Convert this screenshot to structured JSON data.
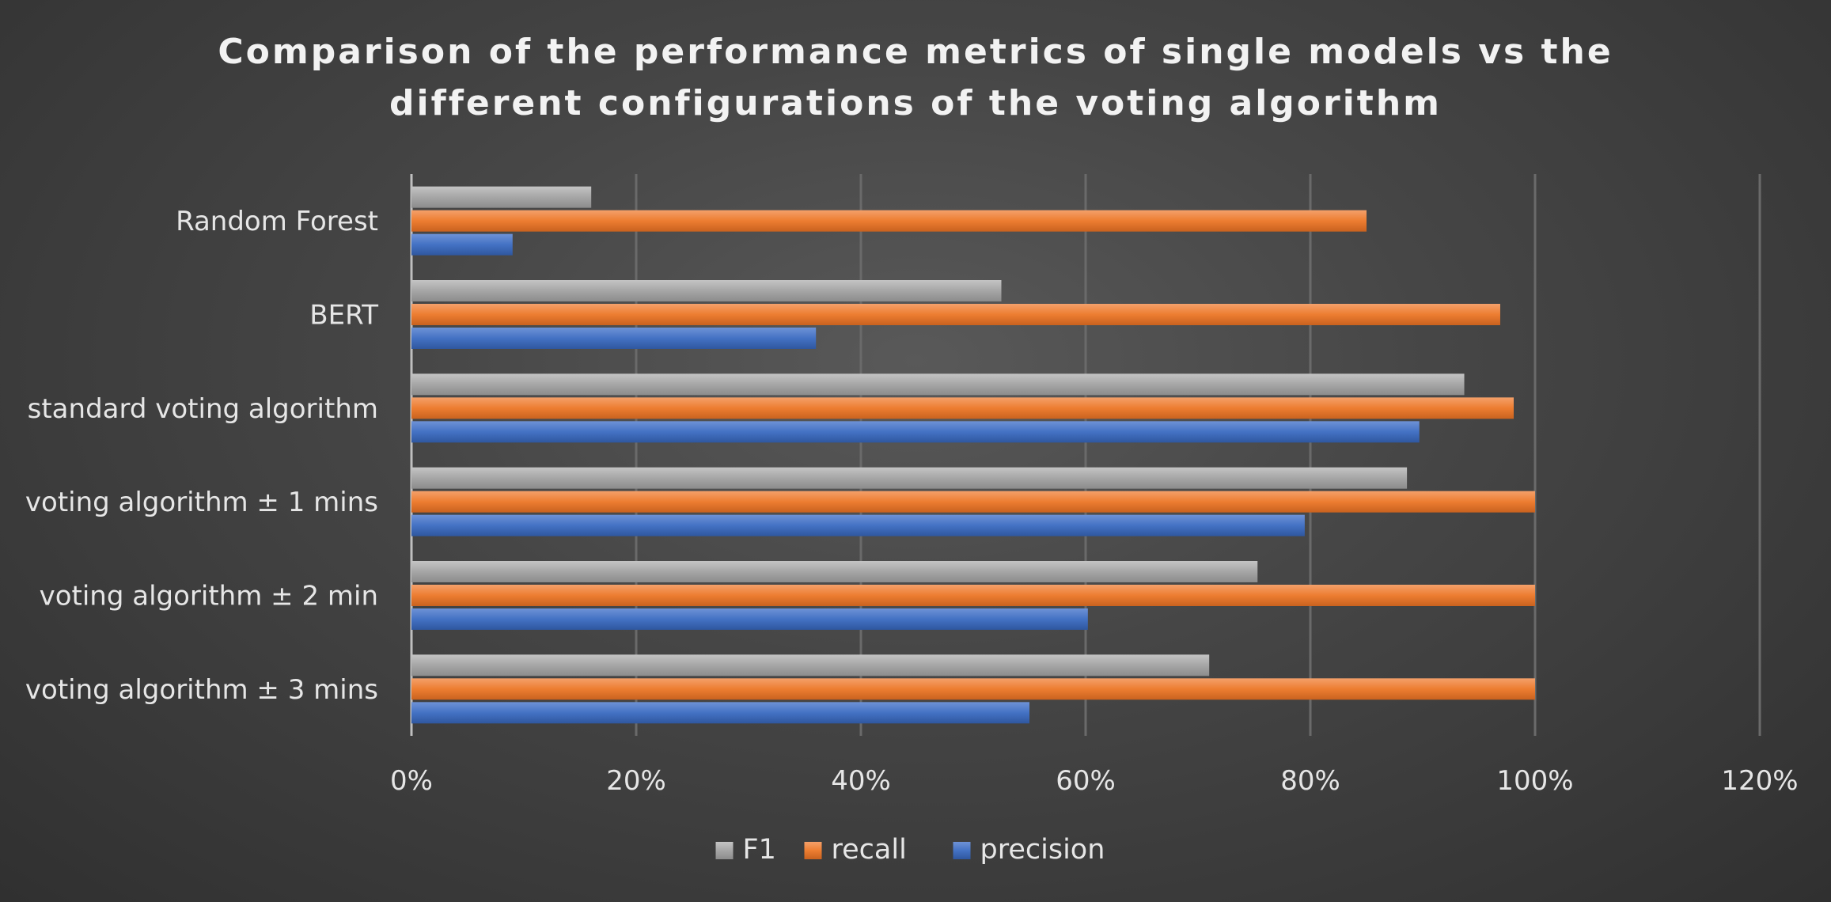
{
  "chart_data": {
    "type": "bar",
    "orientation": "horizontal",
    "title_lines": [
      "Comparison of the performance metrics of single models vs the",
      "different configurations of the voting algorithm"
    ],
    "categories": [
      "Random Forest",
      "BERT",
      "standard voting algorithm",
      "voting algorithm ± 1 mins",
      "voting algorithm ± 2 min",
      "voting algorithm ± 3 mins"
    ],
    "series": [
      {
        "name": "F1",
        "color": "#a6a6a6",
        "values": [
          16,
          52.5,
          93.7,
          88.6,
          75.3,
          71
        ]
      },
      {
        "name": "recall",
        "color": "#ed7d31",
        "values": [
          85,
          96.9,
          98.1,
          100,
          100,
          100
        ]
      },
      {
        "name": "precision",
        "color": "#4472c4",
        "values": [
          9,
          36,
          89.7,
          79.5,
          60.2,
          55
        ]
      }
    ],
    "xlim": [
      0,
      120
    ],
    "xticks": [
      0,
      20,
      40,
      60,
      80,
      100,
      120
    ],
    "xtick_labels": [
      "0%",
      "20%",
      "40%",
      "60%",
      "80%",
      "100%",
      "120%"
    ],
    "grid": true,
    "legend_position": "bottom"
  }
}
